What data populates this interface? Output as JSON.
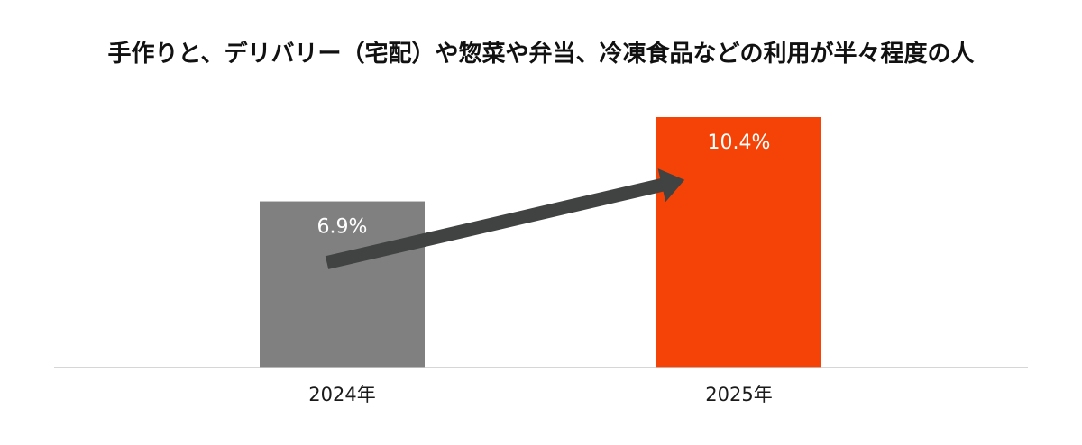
{
  "chart_data": {
    "type": "bar",
    "title": "手作りと、デリバリー（宅配）や惣菜や弁当、冷凍食品などの利用が半々程度の人",
    "categories": [
      "2024年",
      "2025年"
    ],
    "values": [
      6.9,
      10.4
    ],
    "value_labels": [
      "6.9%",
      "10.4%"
    ],
    "unit": "%",
    "ylim": [
      0,
      10.4
    ],
    "grid": false,
    "legend": "none",
    "colors": {
      "bars": [
        "#808080",
        "#f54307"
      ],
      "arrow": "#404341",
      "baseline": "#c9c9c9",
      "title": "#111111",
      "bar_label": "#ffffff",
      "tick_label": "#1a1a1a"
    },
    "annotations": [
      {
        "type": "arrow",
        "from_category": "2024年",
        "to_category": "2025年",
        "meaning": "increase"
      }
    ]
  }
}
